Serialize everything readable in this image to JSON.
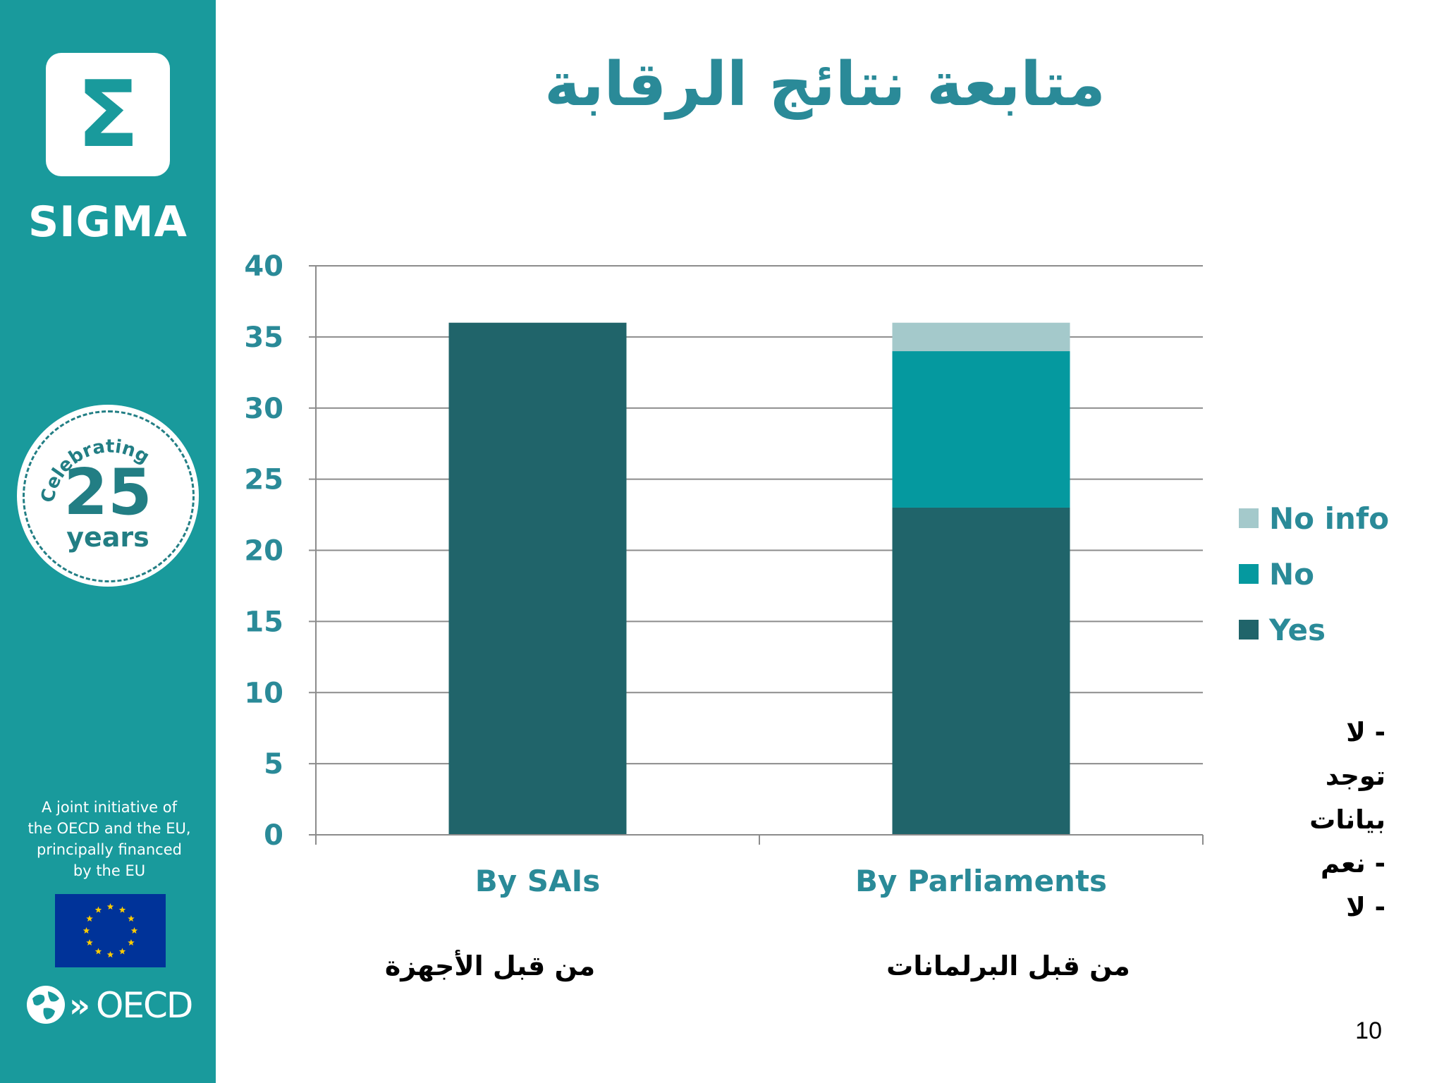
{
  "slide": {
    "title": "متابعة نتائج الرقابة",
    "page_number": "10"
  },
  "sidebar": {
    "logo_symbol": "Σ",
    "brand": "SIGMA",
    "seal": {
      "arc_text": "Celebrating",
      "number": "25",
      "unit": "years"
    },
    "joint_initiative": [
      "A joint initiative of",
      "the OECD and the EU,",
      "principally financed",
      "by the EU"
    ],
    "oecd_text": "OECD",
    "colors": {
      "background": "#199a9c",
      "accent": "#227e84",
      "eu_blue": "#003399",
      "eu_star": "#ffcc00"
    }
  },
  "arabic": {
    "category_labels": [
      "من قبل الأجهزة",
      "من قبل البرلمانات"
    ],
    "legend_notes": [
      "- لا",
      "توجد",
      "بيانات",
      "- نعم",
      "- لا"
    ]
  },
  "chart_data": {
    "type": "bar",
    "stacked": true,
    "categories": [
      "By SAIs",
      "By Parliaments"
    ],
    "series": [
      {
        "name": "Yes",
        "values": [
          36,
          23
        ],
        "color": "#20646a"
      },
      {
        "name": "No",
        "values": [
          0,
          11
        ],
        "color": "#05999f"
      },
      {
        "name": "No info",
        "values": [
          0,
          2
        ],
        "color": "#a4c9cb"
      }
    ],
    "ylim": [
      0,
      40
    ],
    "yticks": [
      0,
      5,
      10,
      15,
      20,
      25,
      30,
      35,
      40
    ],
    "grid": true,
    "legend_position": "right",
    "legend_order": [
      "No info",
      "No",
      "Yes"
    ],
    "colors": {
      "tick_label": "#2a8a98",
      "category_label": "#2a8a98",
      "gridline": "#8c8c8c"
    }
  }
}
